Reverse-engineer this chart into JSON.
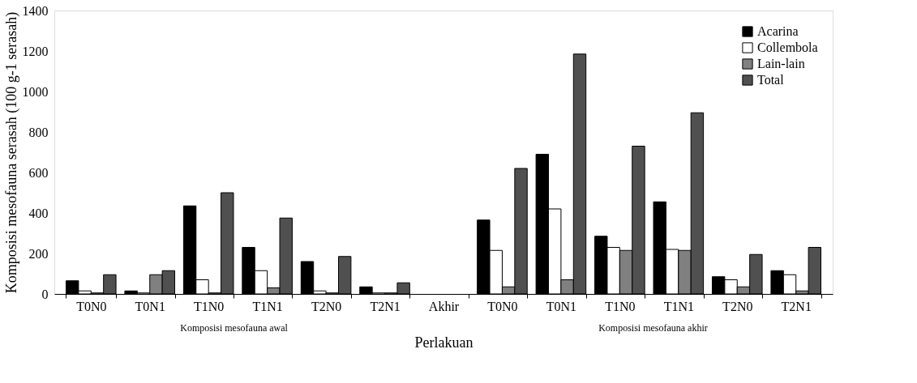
{
  "chart_data": {
    "type": "bar",
    "categories": [
      "T0N0",
      "T0N1",
      "T1N0",
      "T1N1",
      "T2N0",
      "T2N1",
      "Akhir",
      "T0N0",
      "T0N1",
      "T1N0",
      "T1N1",
      "T2N0",
      "T2N1"
    ],
    "series": [
      {
        "name": "Acarina",
        "color": "#000000",
        "values": [
          65,
          15,
          435,
          230,
          160,
          35,
          null,
          365,
          690,
          285,
          455,
          85,
          115
        ]
      },
      {
        "name": "Collembola",
        "color": "#ffffff",
        "values": [
          15,
          5,
          70,
          115,
          15,
          5,
          null,
          215,
          420,
          230,
          220,
          70,
          95
        ]
      },
      {
        "name": "Lain-lain",
        "color": "#808080",
        "values": [
          5,
          95,
          5,
          30,
          5,
          5,
          null,
          35,
          70,
          215,
          215,
          35,
          15
        ]
      },
      {
        "name": "Total",
        "color": "#505050",
        "values": [
          95,
          115,
          500,
          375,
          185,
          55,
          null,
          620,
          1185,
          730,
          895,
          195,
          230
        ]
      }
    ],
    "xlabel": "Perlakuan",
    "ylabel": "Komposisi mesofauna serasah (100  g-1 serasah)",
    "ylim": [
      0,
      1400
    ],
    "yticks": [
      0,
      200,
      400,
      600,
      800,
      1000,
      1200,
      1400
    ],
    "annotations": [
      "Komposisi mesofauna awal",
      "Komposisi mesofauna akhir"
    ],
    "legend": "top right",
    "grid": false
  }
}
